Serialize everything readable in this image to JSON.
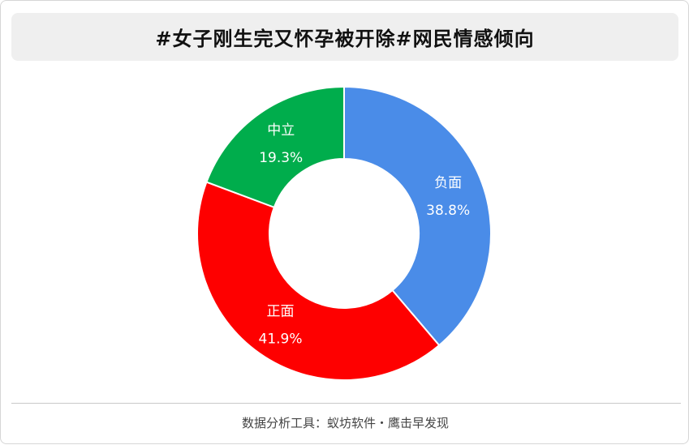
{
  "header": {
    "title": "#女子刚生完又怀孕被开除#网民情感倾向"
  },
  "chart_data": {
    "type": "pie",
    "donut": true,
    "categories": [
      "负面",
      "正面",
      "中立"
    ],
    "values": [
      38.8,
      41.9,
      19.3
    ],
    "value_labels": [
      "38.8%",
      "41.9%",
      "19.3%"
    ],
    "colors": [
      "#4a8ce8",
      "#fe0000",
      "#00ad4c"
    ],
    "legend": "none"
  },
  "footer": {
    "source": "数据分析工具：蚁坊软件・鹰击早发现"
  }
}
